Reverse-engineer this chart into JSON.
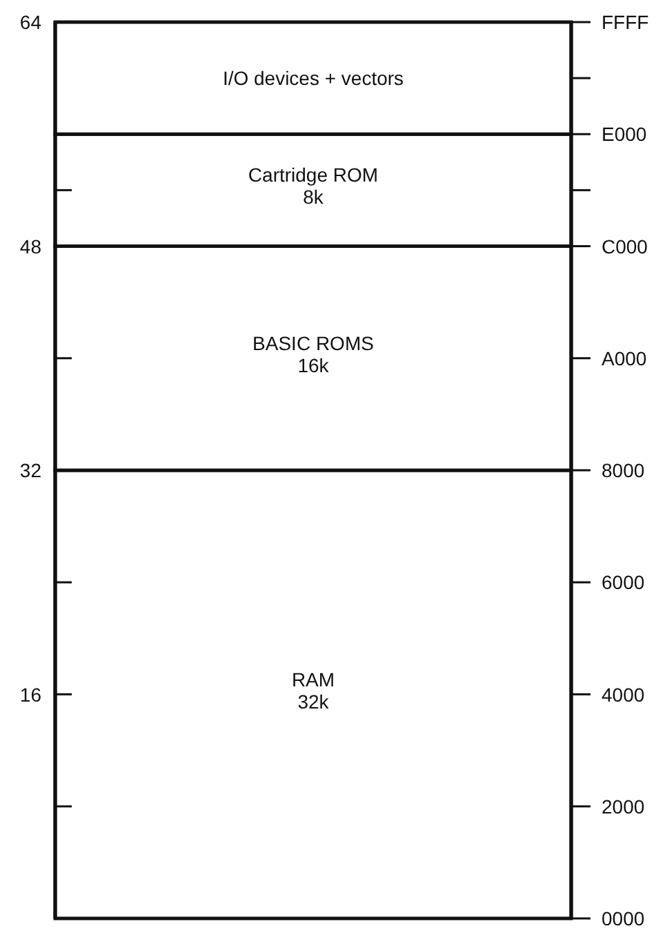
{
  "chart_data": {
    "type": "bar",
    "stacked": true,
    "categories": [
      null
    ],
    "series": [
      {
        "name": "RAM",
        "color": "#ffffff",
        "values": [
          32
        ],
        "value_labels": [
          "32k"
        ]
      },
      {
        "name": "BASIC ROMS",
        "color": "#ffffff",
        "values": [
          16
        ],
        "value_labels": [
          "16k"
        ]
      },
      {
        "name": "Cartridge ROM",
        "color": "#ffffff",
        "values": [
          8
        ],
        "value_labels": [
          "8k"
        ]
      },
      {
        "name": "I/O devices + vectors",
        "color": "#ffffff",
        "values": [
          8
        ],
        "value_labels": [
          null
        ]
      }
    ],
    "ylim": [
      0,
      64
    ],
    "yticks": [
      {
        "value": 8,
        "label": null
      },
      16,
      {
        "value": 24,
        "label": null
      },
      32,
      {
        "value": 40,
        "label": null
      },
      48,
      {
        "value": 52,
        "label": null
      },
      64
    ],
    "y2_categories": [
      "FFFF",
      "E000",
      "C000",
      "A000",
      "8000",
      "6000",
      "4000",
      "2000",
      "0000"
    ]
  }
}
